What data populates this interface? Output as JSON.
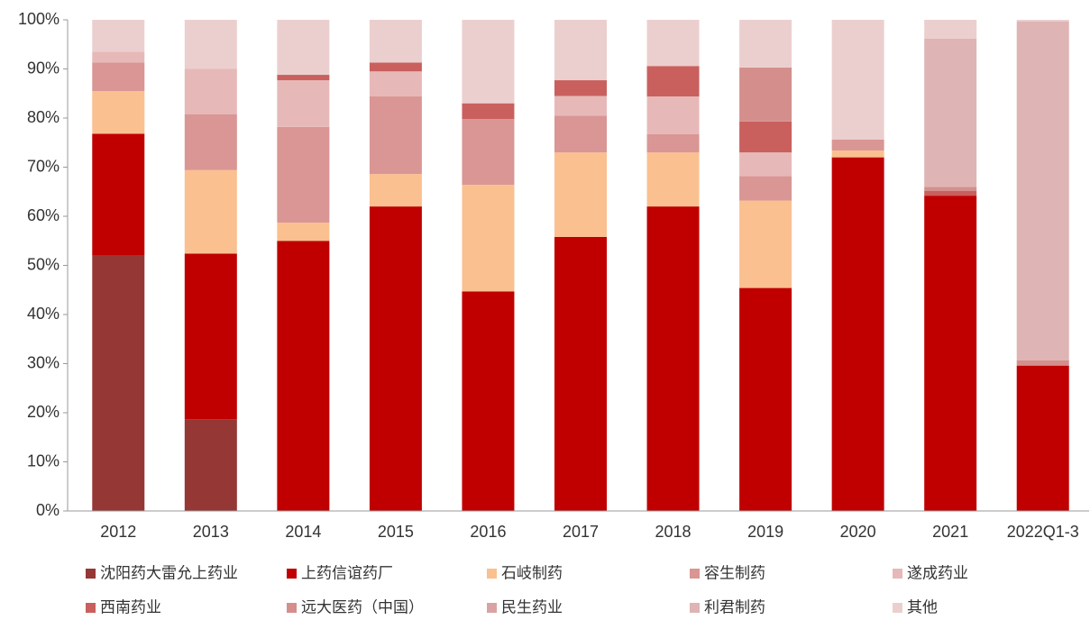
{
  "chart_data": {
    "type": "stacked_bar",
    "categories": [
      "2012",
      "2013",
      "2014",
      "2015",
      "2016",
      "2017",
      "2018",
      "2019",
      "2020",
      "2021",
      "2022Q1-3"
    ],
    "series": [
      {
        "name": "沈阳药大雷允上药业",
        "color": "#953735",
        "values": [
          52,
          18.7,
          0,
          0,
          0,
          0,
          0,
          0,
          0,
          0,
          0
        ]
      },
      {
        "name": "上药信谊药厂",
        "color": "#c00000",
        "values": [
          24.8,
          33.7,
          55,
          62,
          44.7,
          55.8,
          62,
          45.4,
          72,
          64.2,
          29.6
        ]
      },
      {
        "name": "石岐制药",
        "color": "#fac090",
        "values": [
          8.7,
          17,
          3.7,
          6.6,
          21.7,
          17.2,
          11,
          17.8,
          1.4,
          0,
          0
        ]
      },
      {
        "name": "容生制药",
        "color": "#d99694",
        "values": [
          5.8,
          11.4,
          19.5,
          15.8,
          13.4,
          7.5,
          3.7,
          5,
          2.2,
          0,
          0
        ]
      },
      {
        "name": "遂成药业",
        "color": "#e6b9b8",
        "values": [
          2.2,
          9.2,
          9.5,
          5.1,
          0,
          4,
          7.7,
          4.8,
          0,
          0,
          0
        ]
      },
      {
        "name": "西南药业",
        "color": "#c9605e",
        "values": [
          0,
          0,
          1.1,
          1.8,
          3.2,
          3.2,
          6.2,
          6.3,
          0,
          1.0,
          0
        ]
      },
      {
        "name": "远大医药（中国）",
        "color": "#d48f8d",
        "values": [
          0,
          0,
          0,
          0,
          0,
          0,
          0,
          11,
          0,
          0.8,
          1.1
        ]
      },
      {
        "name": "民生药业",
        "color": "#d9a3a3",
        "values": [
          0,
          0,
          0,
          0,
          0,
          0,
          0,
          0,
          0,
          0,
          0
        ]
      },
      {
        "name": "利君制药",
        "color": "#deb5b4",
        "values": [
          0,
          0,
          0,
          0,
          0,
          0,
          0,
          0,
          0,
          30.2,
          69
        ]
      },
      {
        "name": "其他",
        "color": "#ebcfce",
        "values": [
          6.5,
          10,
          11.2,
          8.7,
          17,
          12.3,
          9.4,
          9.7,
          24.4,
          3.8,
          0.3
        ]
      }
    ],
    "ylim": [
      0,
      100
    ],
    "yticks": [
      {
        "value": 0,
        "label": "0%"
      },
      {
        "value": 10,
        "label": "10%"
      },
      {
        "value": 20,
        "label": "20%"
      },
      {
        "value": 30,
        "label": "30%"
      },
      {
        "value": 40,
        "label": "40%"
      },
      {
        "value": 50,
        "label": "50%"
      },
      {
        "value": 60,
        "label": "60%"
      },
      {
        "value": 70,
        "label": "70%"
      },
      {
        "value": 80,
        "label": "80%"
      },
      {
        "value": 90,
        "label": "90%"
      },
      {
        "value": 100,
        "label": "100%"
      }
    ],
    "legend": "bottom"
  }
}
